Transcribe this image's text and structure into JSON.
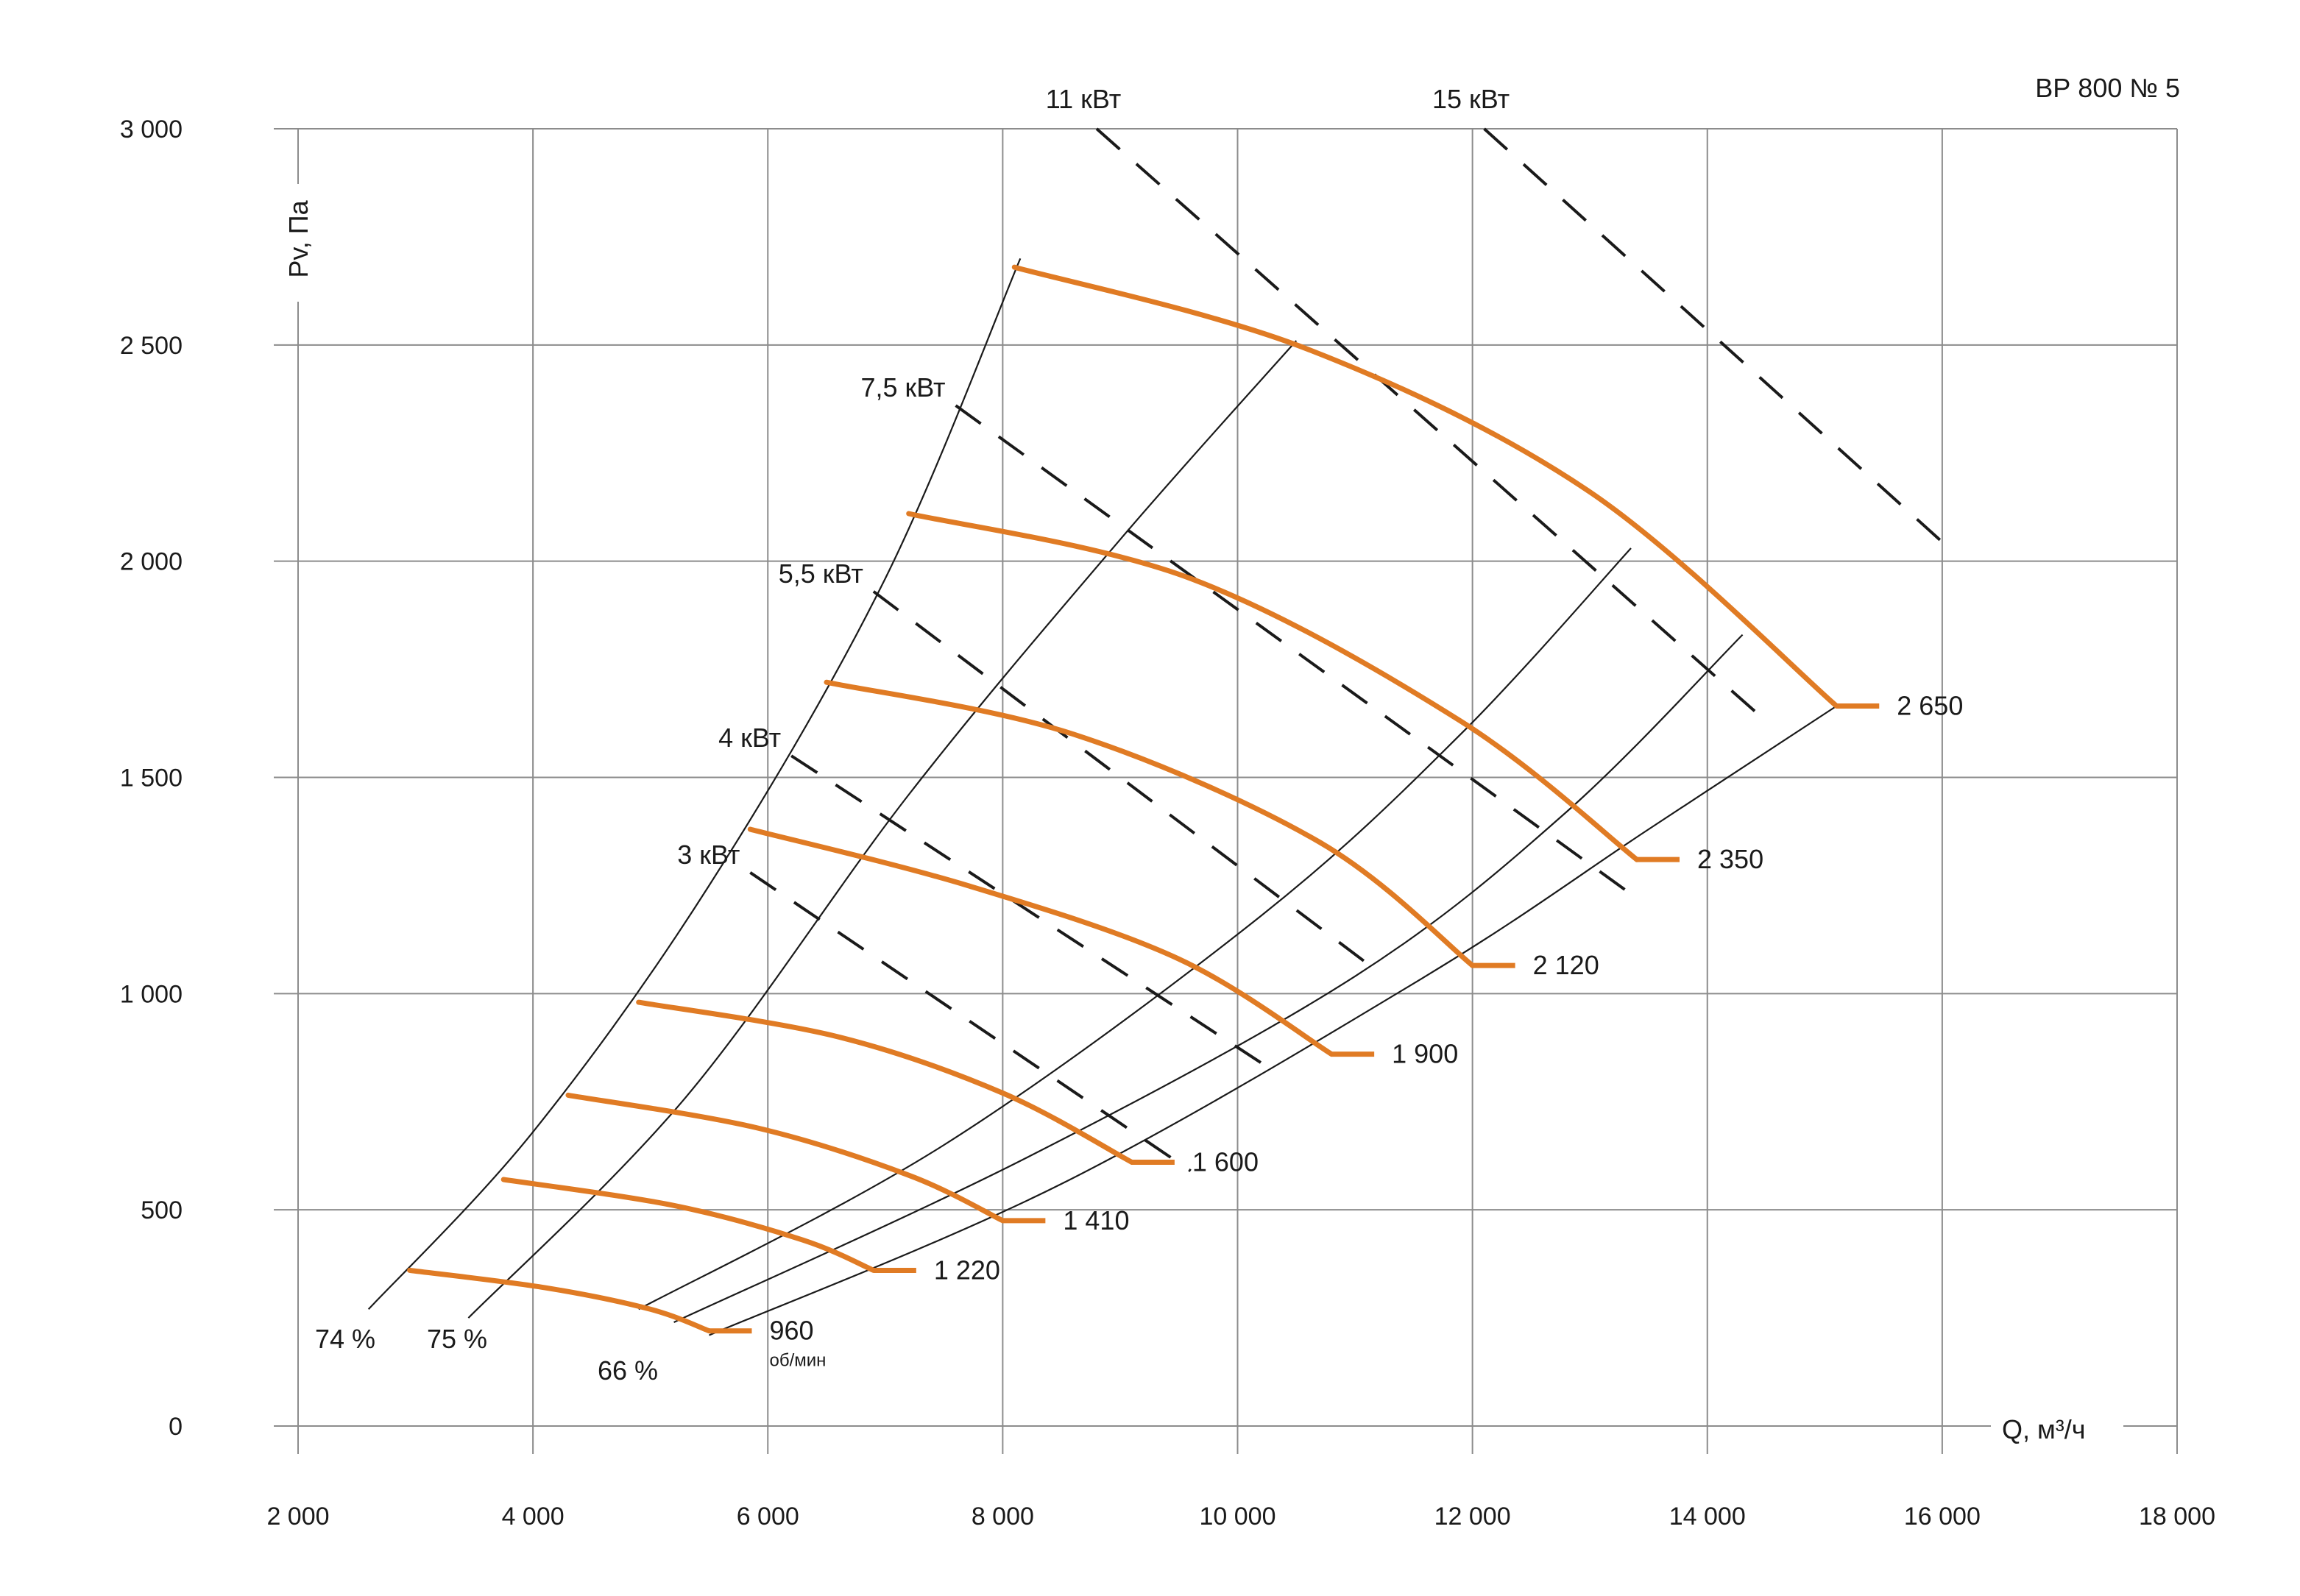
{
  "chart_data": {
    "type": "line",
    "title": "ВР 800 № 5",
    "xlabel": "Q, м³/ч",
    "ylabel": "Pv, Па",
    "xlim": [
      2000,
      18000
    ],
    "ylim": [
      0,
      3000
    ],
    "x_ticks": [
      {
        "value": 2000,
        "label": "2 000"
      },
      {
        "value": 4000,
        "label": "4 000"
      },
      {
        "value": 6000,
        "label": "6 000"
      },
      {
        "value": 8000,
        "label": "8 000"
      },
      {
        "value": 10000,
        "label": "10 000"
      },
      {
        "value": 12000,
        "label": "12 000"
      },
      {
        "value": 14000,
        "label": "14 000"
      },
      {
        "value": 16000,
        "label": "16 000"
      },
      {
        "value": 18000,
        "label": "18 000"
      }
    ],
    "y_ticks": [
      {
        "value": 0,
        "label": "0"
      },
      {
        "value": 500,
        "label": "500"
      },
      {
        "value": 1000,
        "label": "1 000"
      },
      {
        "value": 1500,
        "label": "1 500"
      },
      {
        "value": 2000,
        "label": "2 000"
      },
      {
        "value": 2500,
        "label": "2 500"
      },
      {
        "value": 3000,
        "label": "3 000"
      }
    ],
    "grid": true,
    "series": [
      {
        "name": "960",
        "unit": "об/мин",
        "points": [
          [
            2950,
            360
          ],
          [
            4100,
            320
          ],
          [
            5000,
            270
          ],
          [
            5500,
            220
          ]
        ]
      },
      {
        "name": "1 220",
        "points": [
          [
            3750,
            570
          ],
          [
            5200,
            510
          ],
          [
            6300,
            430
          ],
          [
            6900,
            360
          ]
        ]
      },
      {
        "name": "1 410",
        "points": [
          [
            4300,
            765
          ],
          [
            5900,
            690
          ],
          [
            7200,
            580
          ],
          [
            8000,
            475
          ]
        ]
      },
      {
        "name": "1 600",
        "points": [
          [
            4900,
            980
          ],
          [
            6600,
            900
          ],
          [
            8000,
            770
          ],
          [
            9100,
            610
          ]
        ]
      },
      {
        "name": "1 900",
        "points": [
          [
            5850,
            1380
          ],
          [
            7700,
            1250
          ],
          [
            9500,
            1080
          ],
          [
            10800,
            860
          ]
        ]
      },
      {
        "name": "2 120",
        "points": [
          [
            6500,
            1720
          ],
          [
            8600,
            1600
          ],
          [
            10700,
            1350
          ],
          [
            12000,
            1065
          ]
        ]
      },
      {
        "name": "2 350",
        "points": [
          [
            7200,
            2110
          ],
          [
            9600,
            1960
          ],
          [
            11900,
            1630
          ],
          [
            13400,
            1310
          ]
        ]
      },
      {
        "name": "2 650",
        "points": [
          [
            8100,
            2680
          ],
          [
            10600,
            2490
          ],
          [
            13000,
            2160
          ],
          [
            15100,
            1665
          ]
        ]
      }
    ],
    "efficiency_lines": [
      {
        "name": "74 %",
        "points": [
          [
            2600,
            270
          ],
          [
            4000,
            680
          ],
          [
            5500,
            1250
          ],
          [
            7000,
            1960
          ],
          [
            8150,
            2700
          ]
        ]
      },
      {
        "name": "75 %",
        "points": [
          [
            3450,
            250
          ],
          [
            5300,
            760
          ],
          [
            7200,
            1460
          ],
          [
            9000,
            2050
          ],
          [
            10500,
            2510
          ]
        ]
      },
      {
        "name": "66 %",
        "points": [
          [
            4900,
            270
          ],
          [
            7500,
            650
          ],
          [
            10200,
            1180
          ],
          [
            11900,
            1600
          ],
          [
            13350,
            2030
          ]
        ]
      },
      {
        "name": "",
        "points": [
          [
            5200,
            240
          ],
          [
            8200,
            620
          ],
          [
            11000,
            1040
          ],
          [
            12800,
            1420
          ],
          [
            14300,
            1830
          ]
        ]
      },
      {
        "name": "",
        "points": [
          [
            5500,
            210
          ],
          [
            8500,
            560
          ],
          [
            11600,
            1040
          ],
          [
            13500,
            1380
          ],
          [
            15100,
            1665
          ]
        ]
      }
    ],
    "power_lines": [
      {
        "name": "3 кВт",
        "points": [
          [
            5850,
            1280
          ],
          [
            9600,
            590
          ]
        ]
      },
      {
        "name": "4 кВт",
        "points": [
          [
            6200,
            1550
          ],
          [
            10200,
            840
          ]
        ]
      },
      {
        "name": "5,5 кВт",
        "points": [
          [
            6900,
            1930
          ],
          [
            11200,
            1050
          ]
        ]
      },
      {
        "name": "7,5 кВт",
        "points": [
          [
            7600,
            2360
          ],
          [
            13300,
            1240
          ]
        ]
      },
      {
        "name": "11 кВт",
        "points": [
          [
            8800,
            3000
          ],
          [
            14500,
            1630
          ]
        ]
      },
      {
        "name": "15 кВт",
        "points": [
          [
            12100,
            3000
          ],
          [
            16100,
            2020
          ]
        ]
      }
    ]
  }
}
